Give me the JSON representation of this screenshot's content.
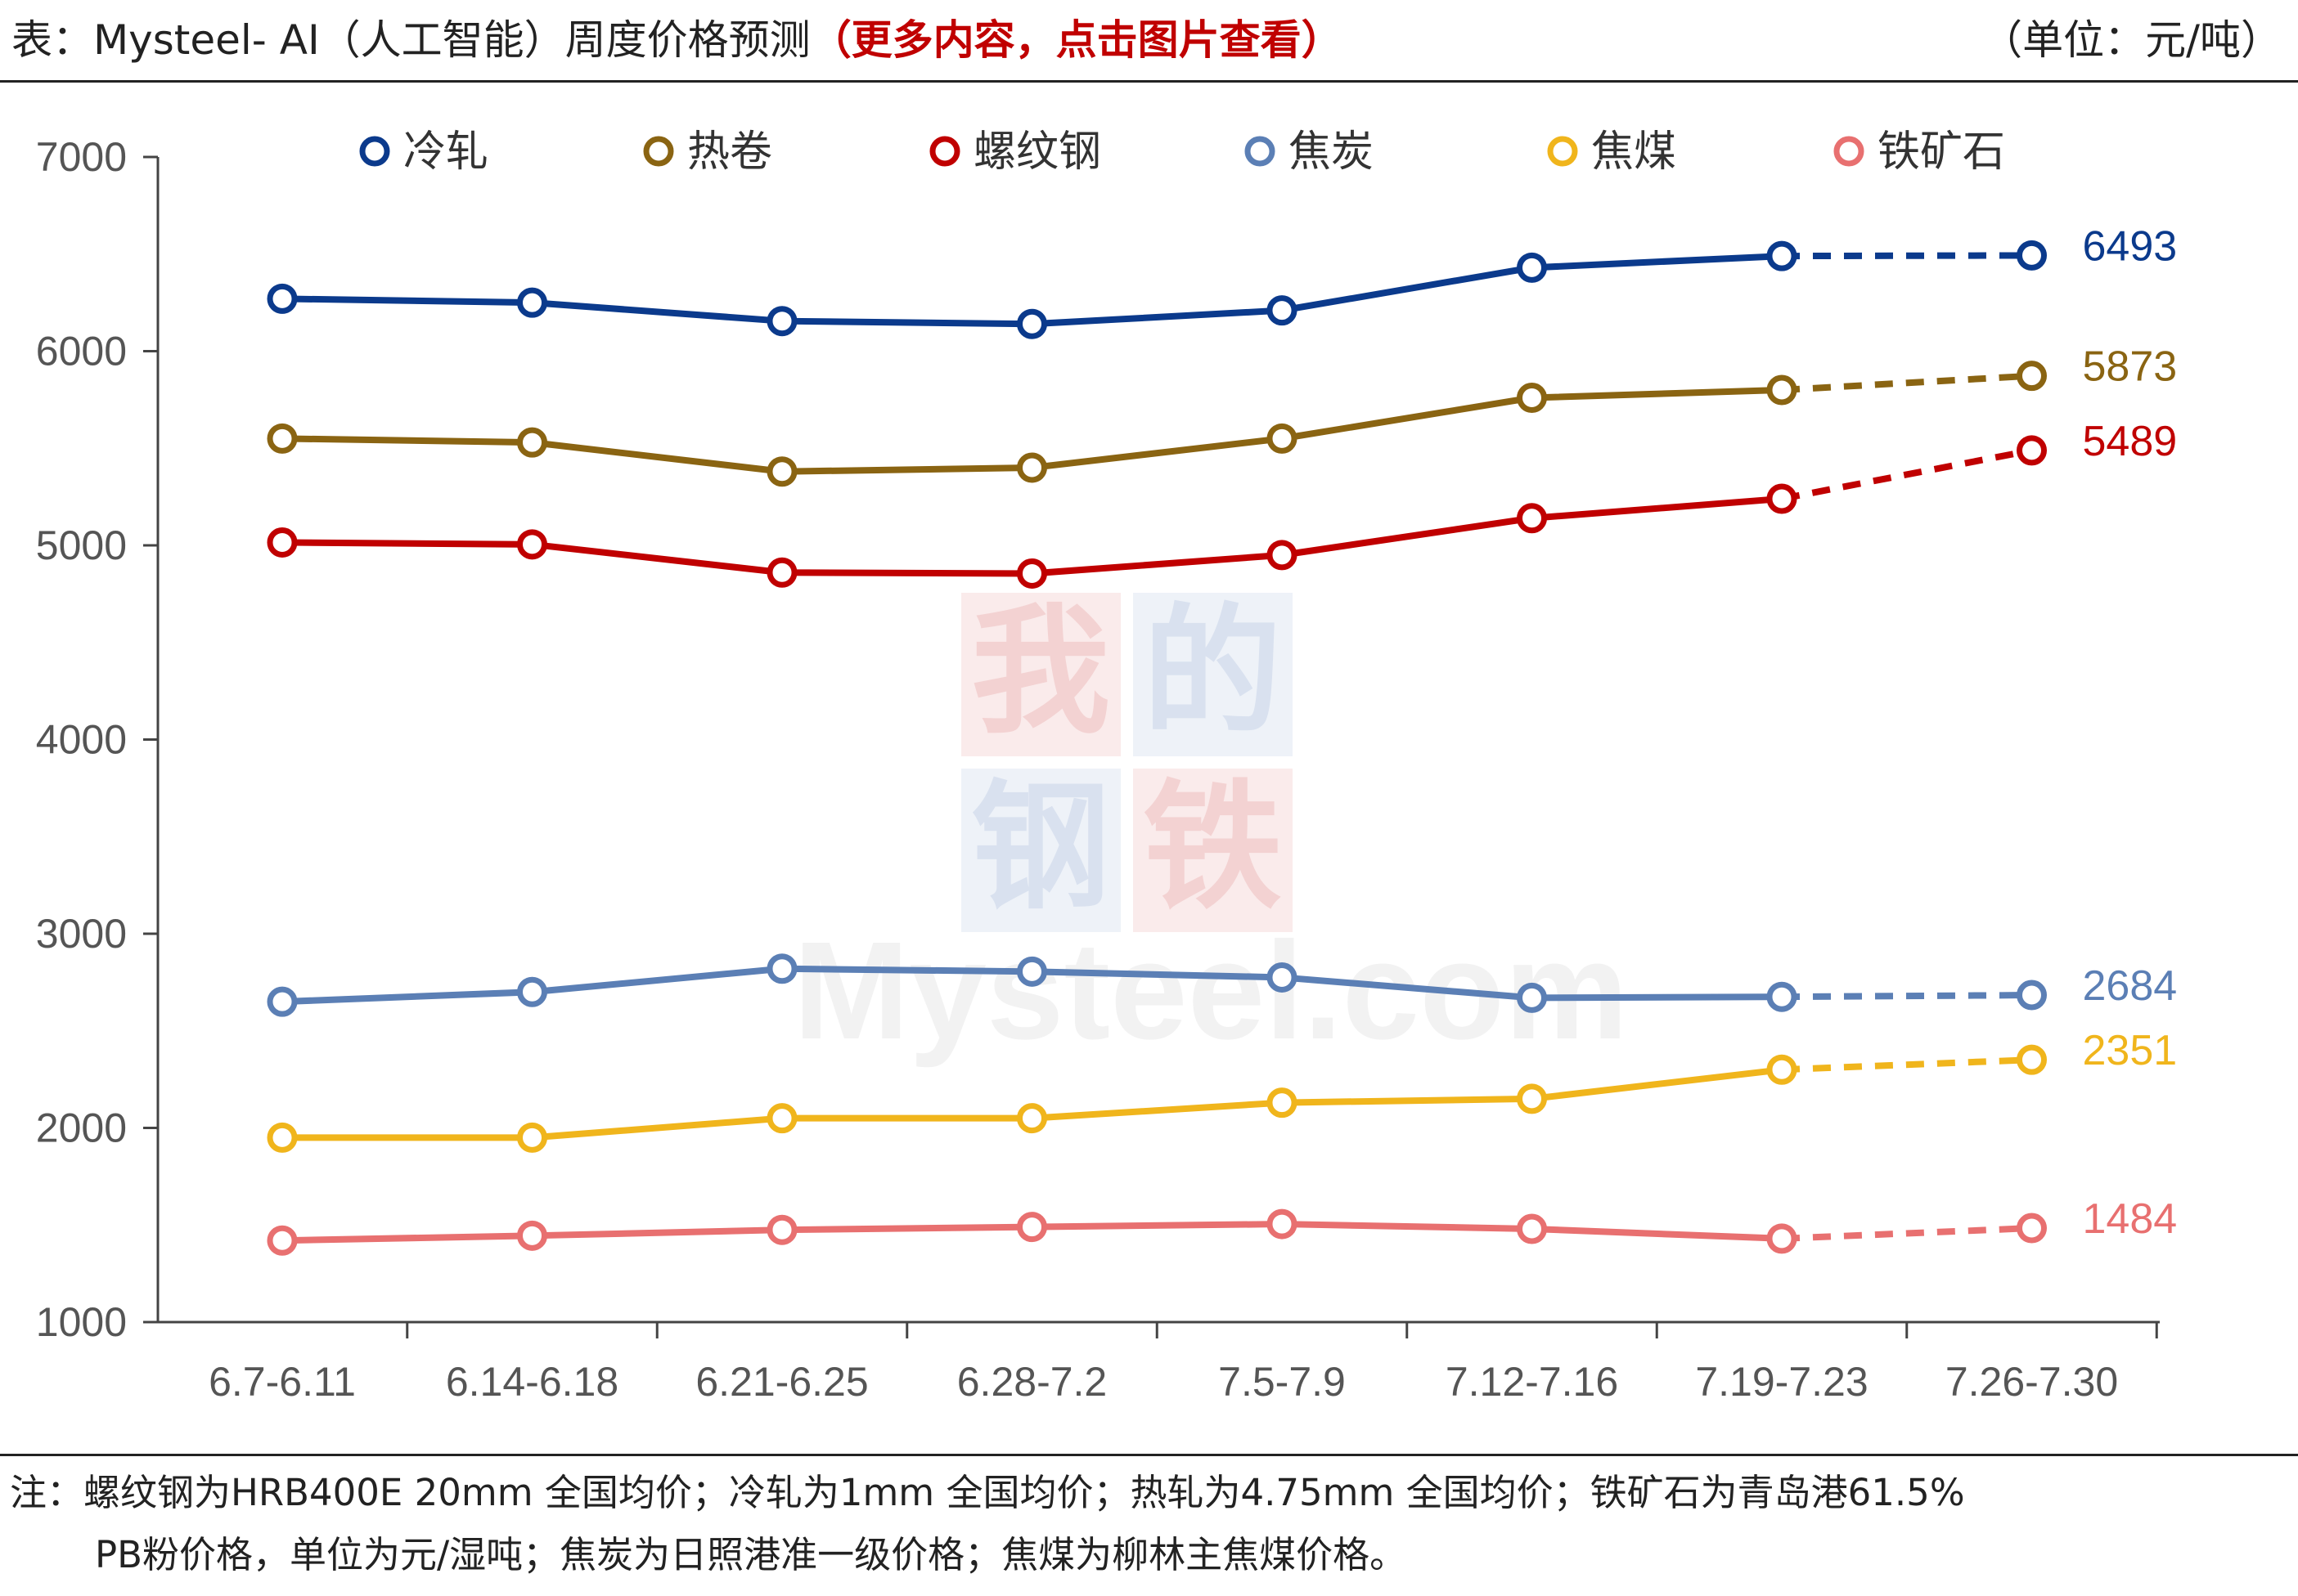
{
  "header": {
    "title_main": "表：Mysteel- AI（人工智能）周度价格预测",
    "title_highlight": "（更多内容，点击图片查看）",
    "unit": "（单位：元/吨）"
  },
  "watermark": {
    "chars": [
      "我",
      "的",
      "钢",
      "铁"
    ],
    "text": "Mysteel.com"
  },
  "note": {
    "line1": "注：螺纹钢为HRB400E 20mm 全国均价；冷轧为1mm 全国均价；热轧为4.75mm 全国均价；铁矿石为青岛港61.5%",
    "line2": "PB粉价格，单位为元/湿吨；焦炭为日照港准一级价格；焦煤为柳林主焦煤价格。"
  },
  "chart_data": {
    "type": "line",
    "title": "",
    "xlabel": "",
    "ylabel": "",
    "ylim": [
      1000,
      7000
    ],
    "yticks": [
      "1000",
      "2000",
      "3000",
      "4000",
      "5000",
      "6000",
      "7000"
    ],
    "categories": [
      "6.7-6.11",
      "6.14-6.18",
      "6.21-6.25",
      "6.28-7.2",
      "7.5-7.9",
      "7.12-7.16",
      "7.19-7.23",
      "7.26-7.30"
    ],
    "grid": false,
    "legend_position": "top",
    "forecast_segment": "last category connected with dashed line",
    "series": [
      {
        "name": "冷轧",
        "color": "#0b3a8c",
        "values": [
          6270,
          6250,
          6155,
          6140,
          6210,
          6430,
          6490,
          6493
        ],
        "label": "6493"
      },
      {
        "name": "热卷",
        "color": "#8a6412",
        "values": [
          5550,
          5530,
          5380,
          5400,
          5550,
          5760,
          5800,
          5873
        ],
        "label": "5873"
      },
      {
        "name": "螺纹钢",
        "color": "#c00000",
        "values": [
          5015,
          5005,
          4860,
          4855,
          4950,
          5140,
          5240,
          5489
        ],
        "label": "5489"
      },
      {
        "name": "焦炭",
        "color": "#5b7fb5",
        "values": [
          2650,
          2700,
          2820,
          2805,
          2775,
          2670,
          2675,
          2684
        ],
        "label": "2684"
      },
      {
        "name": "焦煤",
        "color": "#f0b51c",
        "values": [
          1950,
          1950,
          2050,
          2050,
          2130,
          2150,
          2300,
          2351
        ],
        "label": "2351"
      },
      {
        "name": "铁矿石",
        "color": "#e87070",
        "values": [
          1420,
          1445,
          1475,
          1490,
          1505,
          1480,
          1430,
          1484
        ],
        "label": "1484"
      }
    ]
  }
}
